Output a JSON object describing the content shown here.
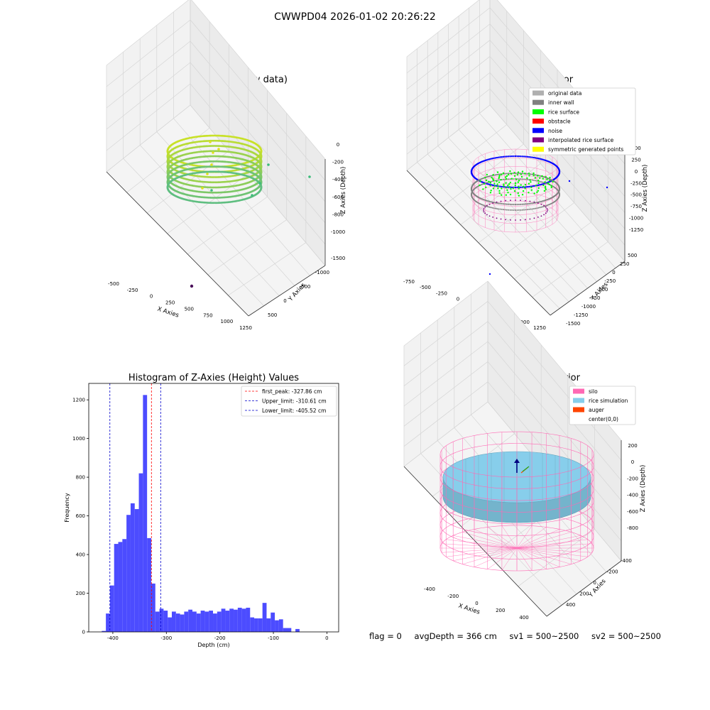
{
  "suptitle": "CWWPD04 2026-01-02 20:26:22",
  "colors": {
    "hist_bar": "#4c4cff",
    "peak_line": "#ff0000",
    "limit_line": "#0000cc",
    "silo": "#ff69b4",
    "rice": "#87ceeb",
    "auger": "#ff4500",
    "noise": "#0000ff",
    "rice_surface": "#00ff00",
    "inner_wall": "#808080",
    "original": "#b0b0b0",
    "interpolated": "#800080",
    "symmetric": "#ffff00"
  },
  "status": {
    "flag": "flag = 0",
    "avg_depth": "avgDepth = 366 cm",
    "sv1": "sv1 = 500~2500",
    "sv2": "sv2 = 500~2500"
  },
  "chart_data": [
    {
      "type": "scatter",
      "subtype": "3d",
      "title": "3D Plot of Silo Interior(row data)",
      "xlabel": "X Axies",
      "ylabel": "Y Axies",
      "zlabel": "Z Axies (Depth)",
      "x_ticks": [
        "-500",
        "-250",
        "0",
        "250",
        "500",
        "750",
        "1000",
        "1250"
      ],
      "y_ticks": [
        "-1500",
        "-1000",
        "-500",
        "0",
        "500"
      ],
      "z_ticks": [
        "0",
        "-200",
        "-400",
        "-600",
        "-800",
        "-1000"
      ]
    },
    {
      "type": "scatter",
      "subtype": "3d",
      "title": "3D classify of Silo Interior",
      "xlabel": "X Axies",
      "ylabel": "Y Axies",
      "zlabel": "Z Axies (Depth)",
      "x_ticks": [
        "-750",
        "-500",
        "-250",
        "0",
        "250",
        "500",
        "750",
        "1000",
        "1250"
      ],
      "y_ticks": [
        "-1500",
        "-1250",
        "-1000",
        "-750",
        "-500",
        "-250",
        "0",
        "250",
        "500"
      ],
      "z_ticks": [
        "500",
        "250",
        "0",
        "-250",
        "-500",
        "-750",
        "-1000",
        "-1250"
      ],
      "legend": [
        {
          "label": "original data",
          "color": "#b0b0b0"
        },
        {
          "label": "inner wall",
          "color": "#808080"
        },
        {
          "label": "rice surface",
          "color": "#00ff00"
        },
        {
          "label": "obstacle",
          "color": "#ff0000"
        },
        {
          "label": "noise",
          "color": "#0000ff"
        },
        {
          "label": "interpolated rice surface",
          "color": "#800080"
        },
        {
          "label": "symmetric generated points",
          "color": "#ffff00"
        }
      ]
    },
    {
      "type": "bar",
      "subtype": "histogram",
      "title": "Histogram of Z-Axies (Height) Values",
      "xlabel": "Depth (cm)",
      "ylabel": "Frequency",
      "xlim": [
        -445,
        22
      ],
      "ylim": [
        0,
        1285
      ],
      "x_ticks": [
        -400,
        -300,
        -200,
        -100,
        0
      ],
      "y_ticks": [
        0,
        200,
        400,
        600,
        800,
        1000,
        1200
      ],
      "bin_start": -420.7,
      "bin_width": 7.7,
      "values": [
        5,
        95,
        240,
        455,
        465,
        480,
        605,
        665,
        635,
        820,
        1225,
        485,
        250,
        105,
        120,
        110,
        75,
        105,
        95,
        90,
        105,
        115,
        105,
        95,
        110,
        105,
        110,
        95,
        105,
        120,
        110,
        120,
        115,
        125,
        120,
        125,
        75,
        70,
        70,
        150,
        70,
        100,
        60,
        65,
        20,
        20,
        0,
        15
      ],
      "vlines": [
        {
          "label": "first_peak: -327.86 cm",
          "x": -327.86,
          "style": "peak"
        },
        {
          "label": "Upper_limit: -310.61 cm",
          "x": -310.61,
          "style": "limit"
        },
        {
          "label": "Lower_limit: -405.52 cm",
          "x": -405.52,
          "style": "limit"
        }
      ]
    },
    {
      "type": "scatter",
      "subtype": "3d",
      "title": "3D simulation of Silo Interior",
      "xlabel": "X Axies",
      "ylabel": "Y Axies",
      "zlabel": "Z Axies (Depth)",
      "x_ticks": [
        "-400",
        "-200",
        "0",
        "200",
        "400"
      ],
      "y_ticks": [
        "-400",
        "-200",
        "0",
        "200",
        "400"
      ],
      "z_ticks": [
        "200",
        "0",
        "-200",
        "-400",
        "-600",
        "-800"
      ],
      "legend": [
        {
          "label": "silo",
          "color": "#ff69b4"
        },
        {
          "label": "rice simulation",
          "color": "#87ceeb"
        },
        {
          "label": "auger",
          "color": "#ff4500"
        },
        {
          "label": "center(0,0)",
          "color": ""
        }
      ]
    }
  ]
}
